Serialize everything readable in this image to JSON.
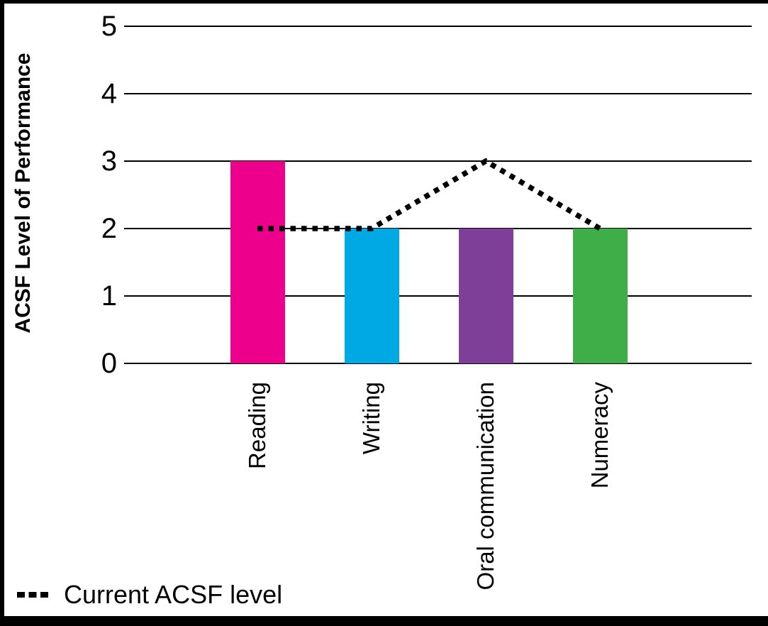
{
  "chart_data": {
    "type": "bar",
    "categories": [
      "Reading",
      "Writing",
      "Oral communication",
      "Numeracy"
    ],
    "bar_values": [
      3,
      2,
      2,
      2
    ],
    "bar_colors": [
      "#EC008C",
      "#00A9E4",
      "#7E3F98",
      "#3FAE49"
    ],
    "line_series": {
      "label": "Current ACSF level",
      "values": [
        2,
        2,
        3,
        2
      ],
      "style": "dotted",
      "color": "#000000"
    },
    "ylabel": "ACSF Level of Performance",
    "ylim": [
      0,
      5
    ],
    "yticks": [
      5,
      4,
      3,
      2,
      1,
      0
    ],
    "grid": true,
    "legend_position": "bottom-left",
    "frame_color": "#000000",
    "background_color": "#FFFFFF"
  }
}
